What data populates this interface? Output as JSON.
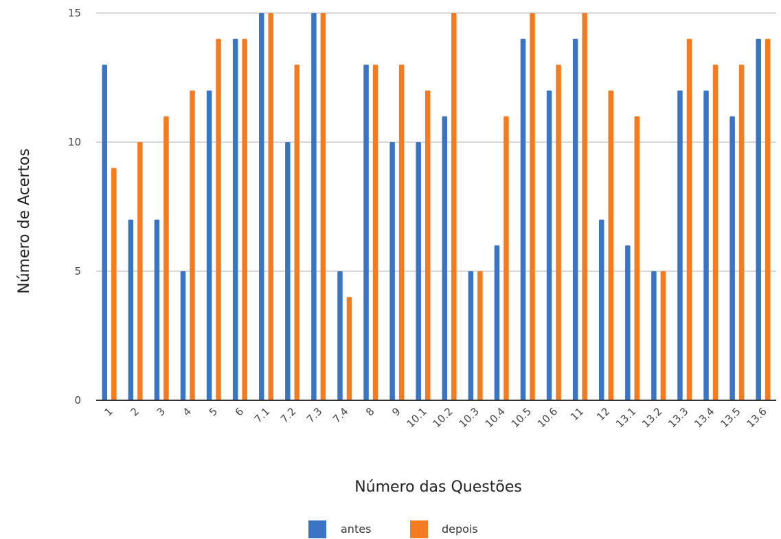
{
  "chart_data": {
    "type": "bar",
    "title": "",
    "xlabel": "Número das Questões",
    "ylabel": "Número de Acertos",
    "ylim": [
      0,
      15
    ],
    "yticks": [
      0,
      5,
      10,
      15
    ],
    "grid": true,
    "legend_position": "bottom",
    "categories": [
      "1",
      "2",
      "3",
      "4",
      "5",
      "6",
      "7.1",
      "7.2",
      "7.3",
      "7.4",
      "8",
      "9",
      "10.1",
      "10.2",
      "10.3",
      "10.4",
      "10.5",
      "10.6",
      "11",
      "12",
      "13.1",
      "13.2",
      "13.3",
      "13.4",
      "13.5",
      "13.6"
    ],
    "series": [
      {
        "name": "antes",
        "color": "#3a75c4",
        "values": [
          13,
          7,
          7,
          5,
          12,
          14,
          15,
          10,
          15,
          5,
          13,
          10,
          10,
          11,
          5,
          6,
          14,
          12,
          14,
          7,
          6,
          5,
          12,
          12,
          11,
          14
        ]
      },
      {
        "name": "depois",
        "color": "#f47b20",
        "values": [
          9,
          10,
          11,
          12,
          14,
          14,
          15,
          13,
          15,
          4,
          13,
          13,
          12,
          15,
          5,
          11,
          15,
          13,
          15,
          12,
          11,
          5,
          14,
          13,
          13,
          14
        ]
      }
    ]
  }
}
